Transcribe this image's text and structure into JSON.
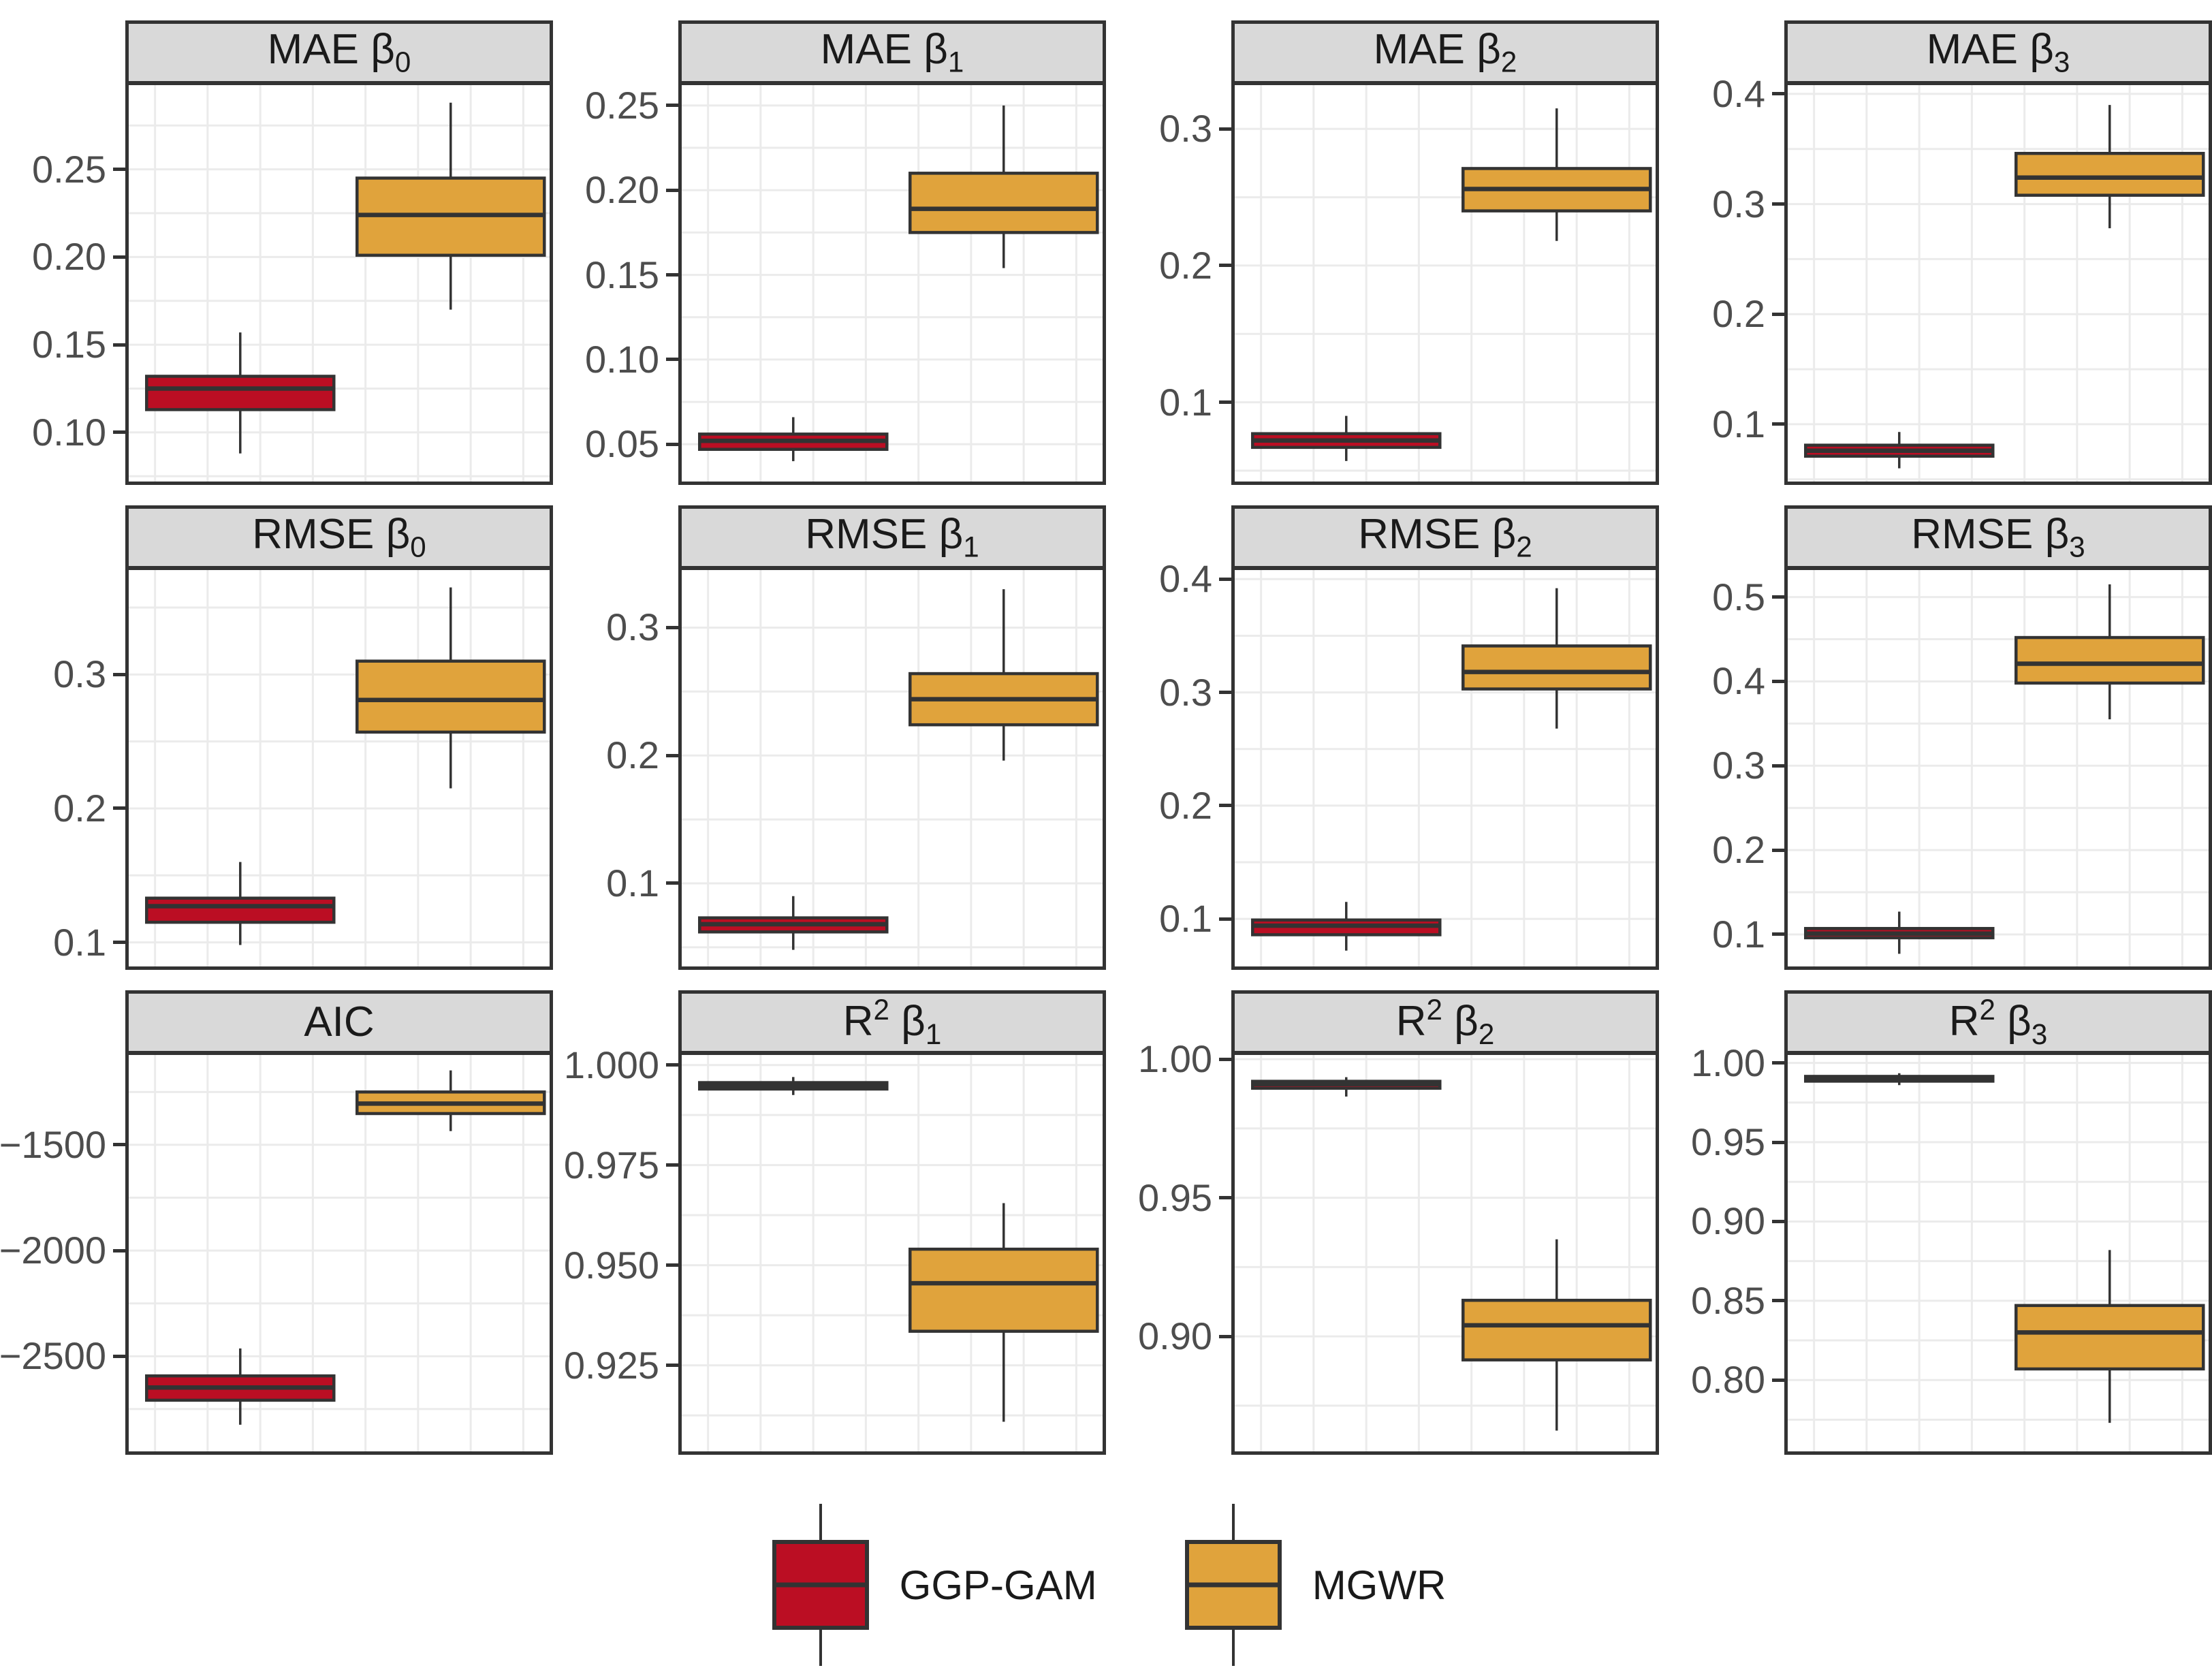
{
  "style": {
    "panel_border": "#333333",
    "strip_bg": "#d9d9d9",
    "grid_color": "#ebebeb",
    "tick_color": "#4d4d4d",
    "box_outline": "#333333",
    "background": "#ffffff"
  },
  "legend": {
    "position": "bottom",
    "items": [
      {
        "label": "GGP-GAM",
        "color": "#bb0e23"
      },
      {
        "label": "MGWR",
        "color": "#e0a33c"
      }
    ]
  },
  "chart_data": {
    "type": "boxplot",
    "layout": {
      "rows": 3,
      "cols": 4,
      "facet_strip": true,
      "grid": "on",
      "legend_position": "bottom"
    },
    "series_names": [
      "GGP-GAM",
      "MGWR"
    ],
    "series_colors": [
      "#bb0e23",
      "#e0a33c"
    ],
    "stats_order": [
      "whisker_low",
      "q1",
      "median",
      "q3",
      "whisker_high"
    ],
    "panels": [
      {
        "id": "mae-b0",
        "title_parts": [
          {
            "text": "MAE β"
          },
          {
            "sub": "0"
          }
        ],
        "ylim": [
          0.072,
          0.298
        ],
        "ticks": [
          {
            "v": 0.25,
            "label": "0.25"
          },
          {
            "v": 0.2,
            "label": "0.20"
          },
          {
            "v": 0.15,
            "label": "0.15"
          },
          {
            "v": 0.1,
            "label": "0.10"
          }
        ],
        "series": [
          {
            "name": "GGP-GAM",
            "stats": [
              0.088,
              0.113,
              0.125,
              0.132,
              0.157
            ]
          },
          {
            "name": "MGWR",
            "stats": [
              0.17,
              0.201,
              0.224,
              0.245,
              0.288
            ]
          }
        ]
      },
      {
        "id": "mae-b1",
        "title_parts": [
          {
            "text": "MAE β"
          },
          {
            "sub": "1"
          }
        ],
        "ylim": [
          0.028,
          0.262
        ],
        "ticks": [
          {
            "v": 0.25,
            "label": "0.25"
          },
          {
            "v": 0.2,
            "label": "0.20"
          },
          {
            "v": 0.15,
            "label": "0.15"
          },
          {
            "v": 0.1,
            "label": "0.10"
          },
          {
            "v": 0.05,
            "label": "0.05"
          }
        ],
        "series": [
          {
            "name": "GGP-GAM",
            "stats": [
              0.04,
              0.047,
              0.052,
              0.056,
              0.066
            ]
          },
          {
            "name": "MGWR",
            "stats": [
              0.154,
              0.175,
              0.189,
              0.21,
              0.25
            ]
          }
        ]
      },
      {
        "id": "mae-b2",
        "title_parts": [
          {
            "text": "MAE β"
          },
          {
            "sub": "2"
          }
        ],
        "ylim": [
          0.042,
          0.332
        ],
        "ticks": [
          {
            "v": 0.3,
            "label": "0.3"
          },
          {
            "v": 0.2,
            "label": "0.2"
          },
          {
            "v": 0.1,
            "label": "0.1"
          }
        ],
        "series": [
          {
            "name": "GGP-GAM",
            "stats": [
              0.057,
              0.067,
              0.072,
              0.077,
              0.09
            ]
          },
          {
            "name": "MGWR",
            "stats": [
              0.218,
              0.24,
              0.256,
              0.271,
              0.315
            ]
          }
        ]
      },
      {
        "id": "mae-b3",
        "title_parts": [
          {
            "text": "MAE β"
          },
          {
            "sub": "3"
          }
        ],
        "ylim": [
          0.048,
          0.408
        ],
        "ticks": [
          {
            "v": 0.4,
            "label": "0.4"
          },
          {
            "v": 0.3,
            "label": "0.3"
          },
          {
            "v": 0.2,
            "label": "0.2"
          },
          {
            "v": 0.1,
            "label": "0.1"
          }
        ],
        "series": [
          {
            "name": "GGP-GAM",
            "stats": [
              0.06,
              0.071,
              0.076,
              0.081,
              0.093
            ]
          },
          {
            "name": "MGWR",
            "stats": [
              0.278,
              0.308,
              0.324,
              0.346,
              0.39
            ]
          }
        ]
      },
      {
        "id": "rmse-b0",
        "title_parts": [
          {
            "text": "RMSE β"
          },
          {
            "sub": "0"
          }
        ],
        "ylim": [
          0.082,
          0.378
        ],
        "ticks": [
          {
            "v": 0.3,
            "label": "0.3"
          },
          {
            "v": 0.2,
            "label": "0.2"
          },
          {
            "v": 0.1,
            "label": "0.1"
          }
        ],
        "series": [
          {
            "name": "GGP-GAM",
            "stats": [
              0.098,
              0.115,
              0.127,
              0.133,
              0.16
            ]
          },
          {
            "name": "MGWR",
            "stats": [
              0.215,
              0.257,
              0.281,
              0.31,
              0.365
            ]
          }
        ]
      },
      {
        "id": "rmse-b1",
        "title_parts": [
          {
            "text": "RMSE β"
          },
          {
            "sub": "1"
          }
        ],
        "ylim": [
          0.035,
          0.345
        ],
        "ticks": [
          {
            "v": 0.3,
            "label": "0.3"
          },
          {
            "v": 0.2,
            "label": "0.2"
          },
          {
            "v": 0.1,
            "label": "0.1"
          }
        ],
        "series": [
          {
            "name": "GGP-GAM",
            "stats": [
              0.048,
              0.062,
              0.068,
              0.073,
              0.09
            ]
          },
          {
            "name": "MGWR",
            "stats": [
              0.196,
              0.224,
              0.244,
              0.264,
              0.33
            ]
          }
        ]
      },
      {
        "id": "rmse-b2",
        "title_parts": [
          {
            "text": "RMSE β"
          },
          {
            "sub": "2"
          }
        ],
        "ylim": [
          0.058,
          0.408
        ],
        "ticks": [
          {
            "v": 0.4,
            "label": "0.4"
          },
          {
            "v": 0.3,
            "label": "0.3"
          },
          {
            "v": 0.2,
            "label": "0.2"
          },
          {
            "v": 0.1,
            "label": "0.1"
          }
        ],
        "series": [
          {
            "name": "GGP-GAM",
            "stats": [
              0.072,
              0.086,
              0.094,
              0.099,
              0.115
            ]
          },
          {
            "name": "MGWR",
            "stats": [
              0.268,
              0.303,
              0.318,
              0.341,
              0.392
            ]
          }
        ]
      },
      {
        "id": "rmse-b3",
        "title_parts": [
          {
            "text": "RMSE β"
          },
          {
            "sub": "3"
          }
        ],
        "ylim": [
          0.062,
          0.532
        ],
        "ticks": [
          {
            "v": 0.5,
            "label": "0.5"
          },
          {
            "v": 0.4,
            "label": "0.4"
          },
          {
            "v": 0.3,
            "label": "0.3"
          },
          {
            "v": 0.2,
            "label": "0.2"
          },
          {
            "v": 0.1,
            "label": "0.1"
          }
        ],
        "series": [
          {
            "name": "GGP-GAM",
            "stats": [
              0.077,
              0.096,
              0.101,
              0.107,
              0.127
            ]
          },
          {
            "name": "MGWR",
            "stats": [
              0.355,
              0.398,
              0.421,
              0.452,
              0.515
            ]
          }
        ]
      },
      {
        "id": "aic",
        "title_parts": [
          {
            "text": "AIC"
          }
        ],
        "ylim": [
          -2950,
          -1075
        ],
        "ticks": [
          {
            "v": -1500,
            "label": "−1500"
          },
          {
            "v": -2000,
            "label": "−2000"
          },
          {
            "v": -2500,
            "label": "−2500"
          }
        ],
        "series": [
          {
            "name": "GGP-GAM",
            "stats": [
              -2824,
              -2708,
              -2648,
              -2593,
              -2463
            ]
          },
          {
            "name": "MGWR",
            "stats": [
              -1435,
              -1352,
              -1305,
              -1250,
              -1148
            ]
          }
        ]
      },
      {
        "id": "r2-b1",
        "title_parts": [
          {
            "text": "R"
          },
          {
            "sup": "2"
          },
          {
            "text": " β"
          },
          {
            "sub": "1"
          }
        ],
        "ylim": [
          0.9035,
          1.0025
        ],
        "ticks": [
          {
            "v": 1.0,
            "label": "1.000"
          },
          {
            "v": 0.975,
            "label": "0.975"
          },
          {
            "v": 0.95,
            "label": "0.950"
          },
          {
            "v": 0.925,
            "label": "0.925"
          }
        ],
        "series": [
          {
            "name": "GGP-GAM",
            "stats": [
              0.9925,
              0.994,
              0.9948,
              0.9956,
              0.997
            ]
          },
          {
            "name": "MGWR",
            "stats": [
              0.9109,
              0.9335,
              0.9455,
              0.954,
              0.9655
            ]
          }
        ]
      },
      {
        "id": "r2-b2",
        "title_parts": [
          {
            "text": "R"
          },
          {
            "sup": "2"
          },
          {
            "text": " β"
          },
          {
            "sub": "2"
          }
        ],
        "ylim": [
          0.8585,
          1.0015
        ],
        "ticks": [
          {
            "v": 1.0,
            "label": "1.00"
          },
          {
            "v": 0.95,
            "label": "0.95"
          },
          {
            "v": 0.9,
            "label": "0.90"
          }
        ],
        "series": [
          {
            "name": "GGP-GAM",
            "stats": [
              0.9865,
              0.9895,
              0.991,
              0.992,
              0.9935
            ]
          },
          {
            "name": "MGWR",
            "stats": [
              0.866,
              0.8915,
              0.904,
              0.913,
              0.935
            ]
          }
        ]
      },
      {
        "id": "r2-b3",
        "title_parts": [
          {
            "text": "R"
          },
          {
            "sup": "2"
          },
          {
            "text": " β"
          },
          {
            "sub": "3"
          }
        ],
        "ylim": [
          0.755,
          1.005
        ],
        "ticks": [
          {
            "v": 1.0,
            "label": "1.00"
          },
          {
            "v": 0.95,
            "label": "0.95"
          },
          {
            "v": 0.9,
            "label": "0.90"
          },
          {
            "v": 0.85,
            "label": "0.85"
          },
          {
            "v": 0.8,
            "label": "0.80"
          }
        ],
        "series": [
          {
            "name": "GGP-GAM",
            "stats": [
              0.986,
              0.9885,
              0.99,
              0.9915,
              0.9935
            ]
          },
          {
            "name": "MGWR",
            "stats": [
              0.773,
              0.807,
              0.83,
              0.847,
              0.882
            ]
          }
        ]
      }
    ]
  }
}
